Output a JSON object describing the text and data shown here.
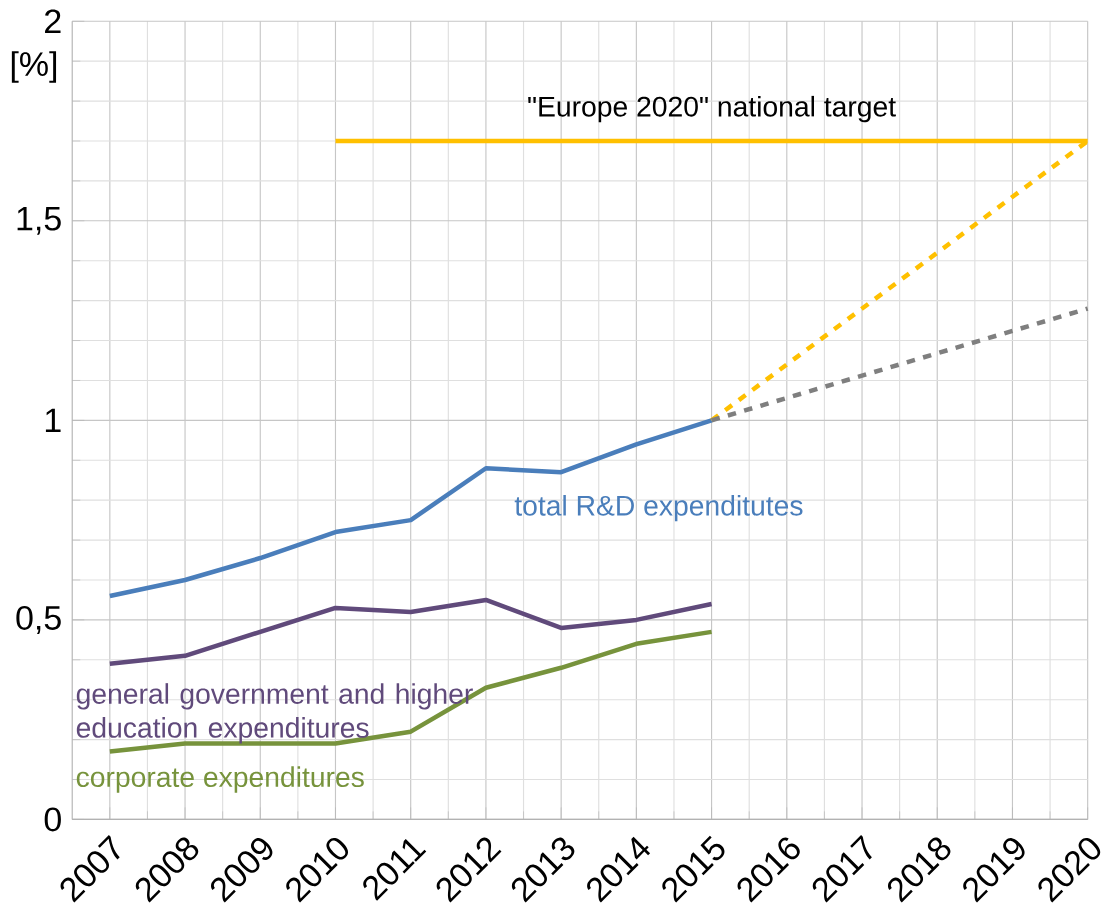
{
  "chart_data": {
    "type": "line",
    "categories": [
      "2007",
      "2008",
      "2009",
      "2010",
      "2011",
      "2012",
      "2013",
      "2014",
      "2015",
      "2016",
      "2017",
      "2018",
      "2019",
      "2020"
    ],
    "series": [
      {
        "name": "total R&D expenditutes",
        "color": "#4a7ebb",
        "values": [
          0.56,
          0.6,
          0.655,
          0.72,
          0.75,
          0.88,
          0.87,
          0.94,
          1.0,
          null,
          null,
          null,
          null,
          null
        ]
      },
      {
        "name": "general government and higher education expenditures",
        "color": "#604a7b",
        "values": [
          0.39,
          0.41,
          0.47,
          0.53,
          0.52,
          0.55,
          0.48,
          0.5,
          0.54,
          null,
          null,
          null,
          null,
          null
        ]
      },
      {
        "name": "corporate expenditures",
        "color": "#77933c",
        "values": [
          0.17,
          0.19,
          0.19,
          0.19,
          0.22,
          0.33,
          0.38,
          0.44,
          0.47,
          null,
          null,
          null,
          null,
          null
        ]
      },
      {
        "name": "\"Europe 2020\" national target",
        "color": "#ffc000",
        "values": [
          null,
          null,
          null,
          1.7,
          1.7,
          1.7,
          1.7,
          1.7,
          1.7,
          1.7,
          1.7,
          1.7,
          1.7,
          1.7
        ]
      },
      {
        "color": "#ffc000",
        "line_style": "dashed",
        "values": [
          null,
          null,
          null,
          null,
          null,
          null,
          null,
          null,
          1.0,
          null,
          null,
          null,
          null,
          1.7
        ]
      },
      {
        "color": "#7f7f7f",
        "line_style": "dashed",
        "values": [
          null,
          null,
          null,
          null,
          null,
          null,
          null,
          null,
          1.0,
          null,
          null,
          null,
          null,
          1.28
        ]
      }
    ],
    "ylabel": "[%]",
    "ylim": [
      0,
      2
    ],
    "yticks": [
      0,
      {
        "value": 0.5,
        "label": "0,5"
      },
      1,
      {
        "value": 1.5,
        "label": "1,5"
      },
      2
    ],
    "grid": true,
    "legend": false,
    "marker": "none",
    "line_style": "solid"
  }
}
